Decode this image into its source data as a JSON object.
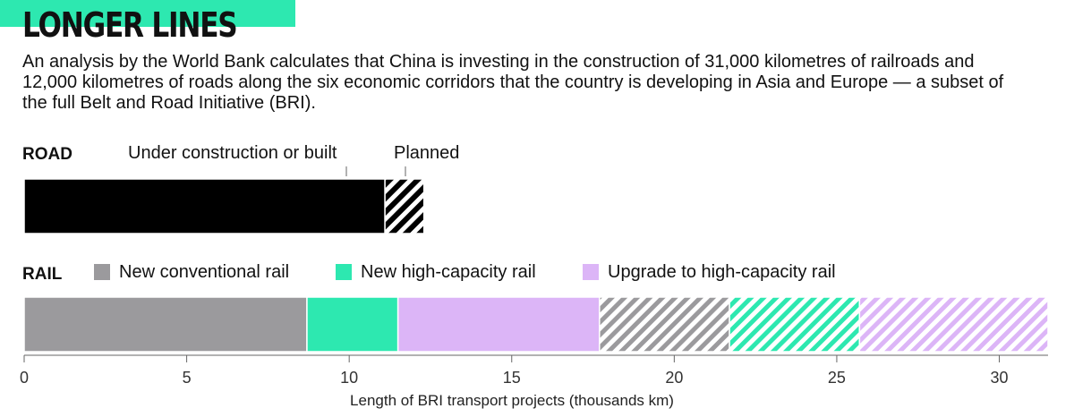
{
  "title": "LONGER LINES",
  "description": "An analysis by the World Bank calculates that China is investing in the construction of 31,000 kilometres of railroads and 12,000 kilometres of roads along the six economic corridors that the country is developing in Asia and Europe — a subset of the full Belt and Road Initiative (BRI).",
  "colors": {
    "accent": "#2de8b0",
    "road": "#000000",
    "conventional_rail": "#9b9a9d",
    "high_capacity_rail": "#2de8b0",
    "upgrade_rail": "#dcb5f7",
    "axis": "#666666"
  },
  "legend": {
    "conventional": "New conventional rail",
    "high_capacity": "New high-capacity rail",
    "upgrade": "Upgrade to high-capacity rail"
  },
  "chart_data": {
    "type": "bar",
    "orientation": "horizontal",
    "stacked": true,
    "categories": [
      "ROAD",
      "RAIL"
    ],
    "xlabel": "Length of BRI transport projects (thousands km)",
    "xlim": [
      0,
      31.5
    ],
    "xticks": [
      0,
      5,
      10,
      15,
      20,
      25,
      30
    ],
    "grid": false,
    "status_labels": {
      "built": "Under construction or built",
      "planned": "Planned"
    },
    "road_segments": [
      {
        "status": "built",
        "start": 0,
        "end": 11.1,
        "color": "#000000"
      },
      {
        "status": "planned",
        "start": 11.1,
        "end": 12.3,
        "color": "#000000"
      }
    ],
    "rail_segments": [
      {
        "type": "New conventional rail",
        "status": "built",
        "start": 0,
        "end": 8.7,
        "color": "#9b9a9d"
      },
      {
        "type": "New high-capacity rail",
        "status": "built",
        "start": 8.7,
        "end": 11.5,
        "color": "#2de8b0"
      },
      {
        "type": "Upgrade to high-capacity rail",
        "status": "built",
        "start": 11.5,
        "end": 17.7,
        "color": "#dcb5f7"
      },
      {
        "type": "New conventional rail",
        "status": "planned",
        "start": 17.7,
        "end": 21.7,
        "color": "#9b9a9d"
      },
      {
        "type": "New high-capacity rail",
        "status": "planned",
        "start": 21.7,
        "end": 25.7,
        "color": "#2de8b0"
      },
      {
        "type": "Upgrade to high-capacity rail",
        "status": "planned",
        "start": 25.7,
        "end": 31.5,
        "color": "#dcb5f7"
      }
    ]
  }
}
